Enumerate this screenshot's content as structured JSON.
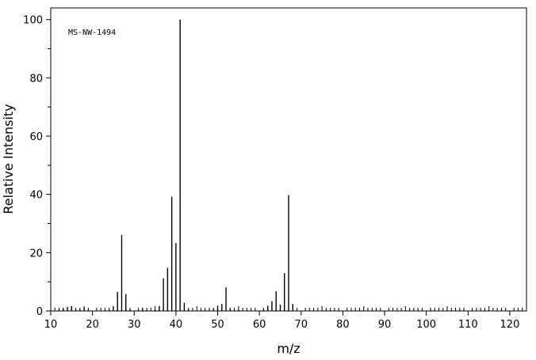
{
  "chart_data": {
    "type": "bar",
    "annotation": "MS-NW-1494",
    "xlabel": "m/z",
    "ylabel": "Relative Intensity",
    "xlim": [
      10,
      124
    ],
    "ylim": [
      0,
      104
    ],
    "x_ticks": [
      10,
      20,
      30,
      40,
      50,
      60,
      70,
      80,
      90,
      100,
      110,
      120
    ],
    "y_ticks": [
      0,
      20,
      40,
      60,
      80,
      100
    ],
    "grid": false,
    "peaks": [
      {
        "mz": 12,
        "intensity": 0.6
      },
      {
        "mz": 13,
        "intensity": 0.9
      },
      {
        "mz": 14,
        "intensity": 1.4
      },
      {
        "mz": 15,
        "intensity": 1.6
      },
      {
        "mz": 16,
        "intensity": 0.4
      },
      {
        "mz": 17,
        "intensity": 0.5
      },
      {
        "mz": 18,
        "intensity": 1.5
      },
      {
        "mz": 19,
        "intensity": 0.3
      },
      {
        "mz": 24,
        "intensity": 0.4
      },
      {
        "mz": 25,
        "intensity": 1.5
      },
      {
        "mz": 26,
        "intensity": 6.5
      },
      {
        "mz": 27,
        "intensity": 26
      },
      {
        "mz": 28,
        "intensity": 5.8
      },
      {
        "mz": 29,
        "intensity": 0.6
      },
      {
        "mz": 31,
        "intensity": 0.4
      },
      {
        "mz": 32,
        "intensity": 0.9
      },
      {
        "mz": 33,
        "intensity": 0.3
      },
      {
        "mz": 35,
        "intensity": 0.4
      },
      {
        "mz": 36,
        "intensity": 1.7
      },
      {
        "mz": 37,
        "intensity": 11.2
      },
      {
        "mz": 38,
        "intensity": 14.8
      },
      {
        "mz": 39,
        "intensity": 39.2
      },
      {
        "mz": 40,
        "intensity": 23.3
      },
      {
        "mz": 41,
        "intensity": 100
      },
      {
        "mz": 42,
        "intensity": 2.8
      },
      {
        "mz": 43,
        "intensity": 0.5
      },
      {
        "mz": 49,
        "intensity": 0.7
      },
      {
        "mz": 50,
        "intensity": 1.8
      },
      {
        "mz": 51,
        "intensity": 2.4
      },
      {
        "mz": 52,
        "intensity": 8.1
      },
      {
        "mz": 53,
        "intensity": 0.8
      },
      {
        "mz": 55,
        "intensity": 0.4
      },
      {
        "mz": 61,
        "intensity": 0.6
      },
      {
        "mz": 62,
        "intensity": 1.8
      },
      {
        "mz": 63,
        "intensity": 3.3
      },
      {
        "mz": 64,
        "intensity": 6.8
      },
      {
        "mz": 65,
        "intensity": 2.2
      },
      {
        "mz": 66,
        "intensity": 13
      },
      {
        "mz": 67,
        "intensity": 39.7
      },
      {
        "mz": 68,
        "intensity": 2.4
      }
    ]
  },
  "colors": {
    "axis": "#000000",
    "peak": "#000000",
    "background": "#ffffff"
  }
}
